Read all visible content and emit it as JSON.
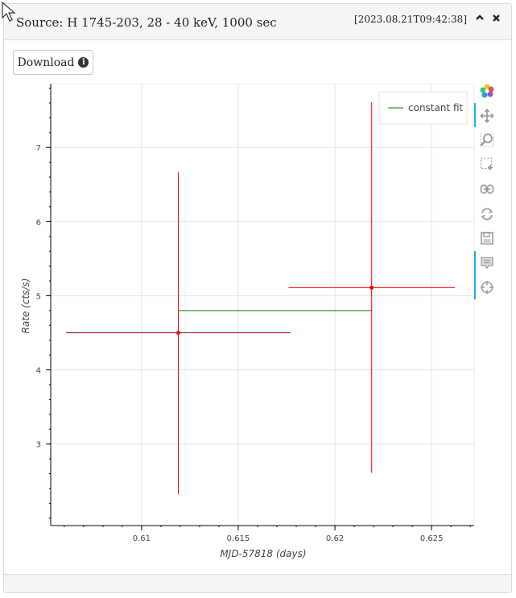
{
  "panel": {
    "title": "Source: H 1745-203, 28 - 40 keV, 1000 sec",
    "timestamp": "[2023.08.21T09:42:38]",
    "collapse_icon": "chevron-up-icon",
    "close_icon": "close-icon"
  },
  "download": {
    "label": "Download",
    "icon": "info-circle-icon"
  },
  "toolbar": {
    "tools": [
      "bokeh-logo-icon",
      "pan-icon",
      "wheel-zoom-icon",
      "box-zoom-icon",
      "link-icon",
      "reset-icon",
      "save-icon",
      "hover-icon",
      "crosshair-icon"
    ]
  },
  "chart_data": {
    "type": "scatter",
    "xlabel": "MJD-57818  (days)",
    "ylabel": "Rate  (cts/s)",
    "xlim": [
      0.6053,
      0.6272
    ],
    "ylim": [
      1.9,
      7.86
    ],
    "x_ticks": [
      0.61,
      0.615,
      0.62,
      0.625
    ],
    "x_tick_labels": [
      "0.61",
      "0.615",
      "0.62",
      "0.625"
    ],
    "y_ticks": [
      3,
      4,
      5,
      6,
      7
    ],
    "y_tick_labels": [
      "3",
      "4",
      "5",
      "6",
      "7"
    ],
    "grid": true,
    "legend": {
      "placement": "top-right",
      "entries": [
        "constant fit"
      ]
    },
    "colors": {
      "data": "#ff0000",
      "fit": "#008000",
      "grid": "#e5e5e5"
    },
    "series": [
      {
        "points": [
          {
            "x": 0.6119,
            "y": 4.5,
            "xerr_low": 0.0058,
            "xerr_high": 0.0058,
            "yerr_low": 2.18,
            "yerr_high": 2.17
          },
          {
            "x": 0.6219,
            "y": 5.11,
            "xerr_low": 0.0043,
            "xerr_high": 0.0043,
            "yerr_low": 2.5,
            "yerr_high": 2.5
          }
        ]
      },
      {
        "name": "constant fit",
        "x": [
          0.6119,
          0.6219
        ],
        "y": [
          4.8,
          4.8
        ]
      }
    ]
  }
}
